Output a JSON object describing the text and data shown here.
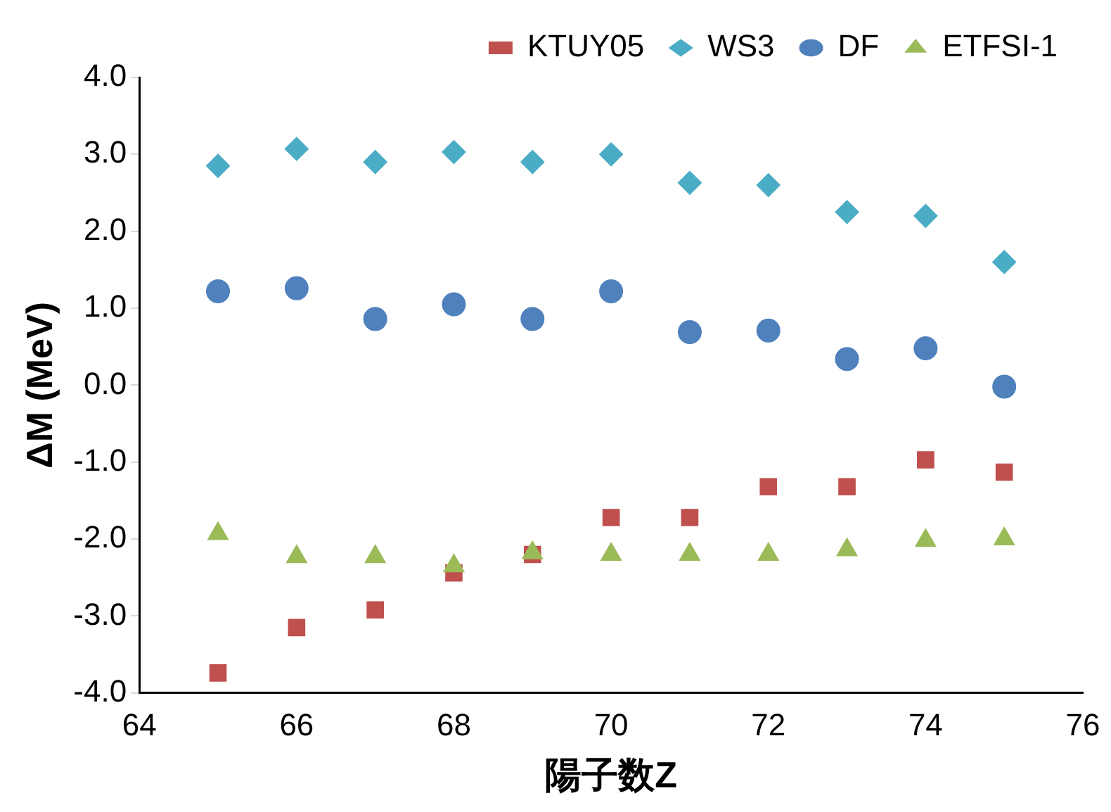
{
  "chart_data": {
    "type": "scatter",
    "xlabel": "陽子数Z",
    "ylabel": "ΔM (MeV)",
    "legend": "top",
    "grid": false,
    "xlim": [
      64,
      76
    ],
    "xticks": [
      64,
      66,
      68,
      70,
      72,
      74,
      76
    ],
    "ylim": [
      -4,
      4
    ],
    "yticks": [
      {
        "value": -4,
        "label": "-4.0"
      },
      {
        "value": -3,
        "label": "-3.0"
      },
      {
        "value": -2,
        "label": "-2.0"
      },
      {
        "value": -1,
        "label": "-1.0"
      },
      {
        "value": 0,
        "label": "0.0"
      },
      {
        "value": 1,
        "label": "1.0"
      },
      {
        "value": 2,
        "label": "2.0"
      },
      {
        "value": 3,
        "label": "3.0"
      },
      {
        "value": 4,
        "label": "4.0"
      }
    ],
    "x": [
      65,
      66,
      67,
      68,
      69,
      70,
      71,
      72,
      73,
      74,
      75
    ],
    "series": [
      {
        "name": "KTUY05",
        "color": "#c0504d",
        "marker": "square",
        "values": [
          -3.74,
          -3.15,
          -2.92,
          -2.44,
          -2.2,
          -1.72,
          -1.72,
          -1.32,
          -1.32,
          -0.97,
          -1.13
        ]
      },
      {
        "name": "WS3",
        "color": "#4bacc6",
        "marker": "diamond",
        "values": [
          2.85,
          3.07,
          2.9,
          3.03,
          2.9,
          3.0,
          2.63,
          2.6,
          2.25,
          2.2,
          1.6
        ]
      },
      {
        "name": "DF",
        "color": "#4f81bd",
        "marker": "circle",
        "values": [
          1.22,
          1.26,
          0.86,
          1.05,
          0.86,
          1.22,
          0.69,
          0.71,
          0.34,
          0.48,
          -0.02
        ]
      },
      {
        "name": "ETFSI-1",
        "color": "#9bbb59",
        "marker": "triangle",
        "values": [
          -1.93,
          -2.23,
          -2.23,
          -2.35,
          -2.18,
          -2.2,
          -2.2,
          -2.2,
          -2.14,
          -2.02,
          -2.0
        ]
      }
    ]
  }
}
